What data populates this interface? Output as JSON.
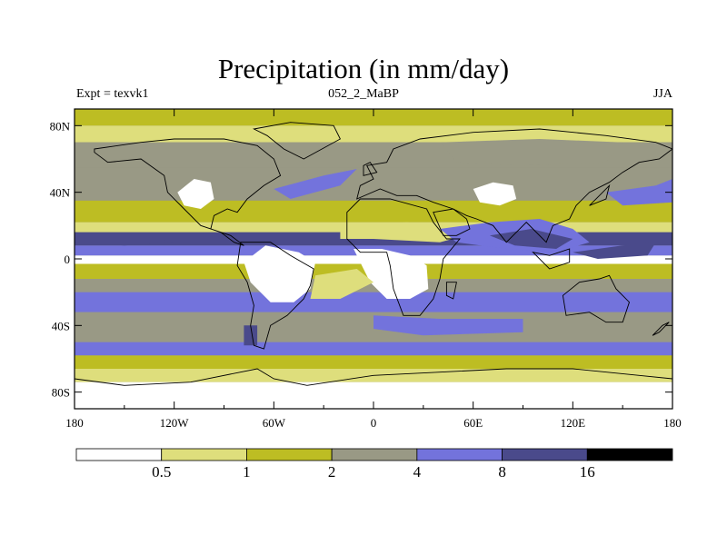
{
  "title": "Precipitation (in mm/day)",
  "subtitle": {
    "left": "Expt = texvk1",
    "center": "052_2_MaBP",
    "right": "JJA"
  },
  "chart_data": {
    "type": "heatmap",
    "subtype": "filled-contour world map",
    "variable": "Precipitation",
    "units": "mm/day",
    "season": "JJA",
    "lon_range": [
      -180,
      180
    ],
    "lat_range": [
      -90,
      90
    ],
    "x_ticks": [
      {
        "value": -180,
        "label": "180"
      },
      {
        "value": -120,
        "label": "120W"
      },
      {
        "value": -60,
        "label": "60W"
      },
      {
        "value": 0,
        "label": "0"
      },
      {
        "value": 60,
        "label": "60E"
      },
      {
        "value": 120,
        "label": "120E"
      },
      {
        "value": 180,
        "label": "180"
      }
    ],
    "y_ticks": [
      {
        "value": 80,
        "label": "80N"
      },
      {
        "value": 40,
        "label": "40N"
      },
      {
        "value": 0,
        "label": "0"
      },
      {
        "value": -40,
        "label": "40S"
      },
      {
        "value": -80,
        "label": "80S"
      }
    ],
    "levels": [
      0.5,
      1,
      2,
      4,
      8,
      16
    ],
    "level_labels": [
      "0.5",
      "1",
      "2",
      "4",
      "8",
      "16"
    ],
    "colors": [
      "#ffffff",
      "#dede7c",
      "#bdbd23",
      "#999985",
      "#7373dc",
      "#4a4a8b",
      "#000000"
    ],
    "zonal_bands": [
      {
        "lat": [
          80,
          90
        ],
        "bin": 2
      },
      {
        "lat": [
          70,
          80
        ],
        "bin": 1
      },
      {
        "lat": [
          55,
          70
        ],
        "bin": 3
      },
      {
        "lat": [
          35,
          55
        ],
        "bin": 3
      },
      {
        "lat": [
          22,
          35
        ],
        "bin": 2
      },
      {
        "lat": [
          16,
          22
        ],
        "bin": 1
      },
      {
        "lat": [
          8,
          16
        ],
        "bin": 5
      },
      {
        "lat": [
          2,
          8
        ],
        "bin": 4
      },
      {
        "lat": [
          -3,
          2
        ],
        "bin": 0
      },
      {
        "lat": [
          -12,
          -3
        ],
        "bin": 2
      },
      {
        "lat": [
          -20,
          -12
        ],
        "bin": 3
      },
      {
        "lat": [
          -32,
          -20
        ],
        "bin": 4
      },
      {
        "lat": [
          -50,
          -32
        ],
        "bin": 3
      },
      {
        "lat": [
          -58,
          -50
        ],
        "bin": 4
      },
      {
        "lat": [
          -66,
          -58
        ],
        "bin": 2
      },
      {
        "lat": [
          -74,
          -66
        ],
        "bin": 1
      },
      {
        "lat": [
          -90,
          -74
        ],
        "bin": 0
      }
    ],
    "regions": [
      {
        "name": "south-america-dry",
        "bin": 0,
        "points": [
          [
            -65,
            8
          ],
          [
            -45,
            4
          ],
          [
            -35,
            -2
          ],
          [
            -38,
            -18
          ],
          [
            -48,
            -26
          ],
          [
            -62,
            -26
          ],
          [
            -74,
            -14
          ],
          [
            -78,
            -2
          ]
        ]
      },
      {
        "name": "africa-dry",
        "bin": 0,
        "points": [
          [
            -12,
            6
          ],
          [
            5,
            6
          ],
          [
            22,
            2
          ],
          [
            32,
            -4
          ],
          [
            33,
            -18
          ],
          [
            22,
            -24
          ],
          [
            8,
            -24
          ],
          [
            -2,
            -14
          ]
        ]
      },
      {
        "name": "north-america-dry",
        "bin": 0,
        "points": [
          [
            -118,
            40
          ],
          [
            -108,
            48
          ],
          [
            -98,
            46
          ],
          [
            -96,
            36
          ],
          [
            -104,
            30
          ],
          [
            -114,
            32
          ]
        ]
      },
      {
        "name": "central-asia-dry",
        "bin": 0,
        "points": [
          [
            60,
            42
          ],
          [
            72,
            46
          ],
          [
            84,
            44
          ],
          [
            86,
            36
          ],
          [
            76,
            32
          ],
          [
            64,
            34
          ]
        ]
      },
      {
        "name": "sahara-band",
        "bin": 1,
        "points": [
          [
            -20,
            20
          ],
          [
            20,
            22
          ],
          [
            45,
            20
          ],
          [
            55,
            14
          ],
          [
            40,
            10
          ],
          [
            0,
            12
          ],
          [
            -20,
            12
          ]
        ]
      },
      {
        "name": "south-atlantic-dry",
        "bin": 1,
        "points": [
          [
            -35,
            -10
          ],
          [
            -10,
            -6
          ],
          [
            0,
            -14
          ],
          [
            -20,
            -24
          ],
          [
            -38,
            -24
          ]
        ]
      },
      {
        "name": "asian-monsoon",
        "bin": 4,
        "points": [
          [
            40,
            18
          ],
          [
            70,
            22
          ],
          [
            100,
            24
          ],
          [
            120,
            18
          ],
          [
            130,
            10
          ],
          [
            110,
            4
          ],
          [
            80,
            6
          ],
          [
            50,
            10
          ]
        ]
      },
      {
        "name": "monsoon-core",
        "bin": 5,
        "points": [
          [
            70,
            14
          ],
          [
            95,
            18
          ],
          [
            120,
            12
          ],
          [
            110,
            6
          ],
          [
            85,
            8
          ]
        ]
      },
      {
        "name": "west-pacific-wet",
        "bin": 5,
        "points": [
          [
            120,
            4
          ],
          [
            150,
            8
          ],
          [
            170,
            10
          ],
          [
            165,
            2
          ],
          [
            135,
            0
          ]
        ]
      },
      {
        "name": "pacific-itcz",
        "bin": 5,
        "points": [
          [
            -180,
            16
          ],
          [
            -140,
            14
          ],
          [
            -120,
            10
          ],
          [
            -150,
            8
          ],
          [
            -180,
            10
          ]
        ]
      },
      {
        "name": "patagonia-wet",
        "bin": 5,
        "points": [
          [
            -78,
            -40
          ],
          [
            -70,
            -40
          ],
          [
            -70,
            -52
          ],
          [
            -78,
            -52
          ]
        ]
      },
      {
        "name": "siberia-gray",
        "bin": 3,
        "points": [
          [
            40,
            70
          ],
          [
            100,
            72
          ],
          [
            150,
            70
          ],
          [
            140,
            58
          ],
          [
            90,
            56
          ],
          [
            50,
            58
          ]
        ]
      },
      {
        "name": "north-pacific-wet",
        "bin": 4,
        "points": [
          [
            140,
            40
          ],
          [
            170,
            44
          ],
          [
            180,
            48
          ],
          [
            180,
            34
          ],
          [
            150,
            32
          ]
        ]
      },
      {
        "name": "north-atlantic-wet",
        "bin": 4,
        "points": [
          [
            -60,
            42
          ],
          [
            -30,
            50
          ],
          [
            -10,
            54
          ],
          [
            -20,
            44
          ],
          [
            -50,
            36
          ]
        ]
      },
      {
        "name": "southern-ocean-wet",
        "bin": 4,
        "points": [
          [
            0,
            -34
          ],
          [
            40,
            -36
          ],
          [
            90,
            -36
          ],
          [
            90,
            -44
          ],
          [
            30,
            -46
          ],
          [
            0,
            -42
          ]
        ]
      }
    ],
    "land_outlines": [
      {
        "name": "north-america",
        "points": [
          [
            -168,
            66
          ],
          [
            -140,
            70
          ],
          [
            -120,
            72
          ],
          [
            -90,
            72
          ],
          [
            -70,
            68
          ],
          [
            -60,
            60
          ],
          [
            -56,
            50
          ],
          [
            -66,
            44
          ],
          [
            -76,
            36
          ],
          [
            -82,
            28
          ],
          [
            -88,
            30
          ],
          [
            -96,
            26
          ],
          [
            -98,
            18
          ],
          [
            -92,
            16
          ],
          [
            -84,
            10
          ],
          [
            -78,
            8
          ],
          [
            -86,
            14
          ],
          [
            -104,
            20
          ],
          [
            -114,
            30
          ],
          [
            -124,
            40
          ],
          [
            -126,
            50
          ],
          [
            -140,
            60
          ],
          [
            -160,
            58
          ],
          [
            -168,
            64
          ]
        ]
      },
      {
        "name": "south-america",
        "points": [
          [
            -80,
            10
          ],
          [
            -62,
            10
          ],
          [
            -50,
            2
          ],
          [
            -36,
            -6
          ],
          [
            -38,
            -16
          ],
          [
            -42,
            -24
          ],
          [
            -52,
            -34
          ],
          [
            -62,
            -40
          ],
          [
            -66,
            -54
          ],
          [
            -72,
            -52
          ],
          [
            -74,
            -40
          ],
          [
            -72,
            -28
          ],
          [
            -76,
            -14
          ],
          [
            -82,
            -4
          ]
        ]
      },
      {
        "name": "greenland",
        "points": [
          [
            -72,
            78
          ],
          [
            -50,
            82
          ],
          [
            -24,
            80
          ],
          [
            -20,
            72
          ],
          [
            -42,
            60
          ],
          [
            -54,
            66
          ],
          [
            -64,
            74
          ]
        ]
      },
      {
        "name": "eurasia",
        "points": [
          [
            -10,
            36
          ],
          [
            -8,
            44
          ],
          [
            0,
            48
          ],
          [
            -4,
            56
          ],
          [
            8,
            58
          ],
          [
            12,
            66
          ],
          [
            28,
            72
          ],
          [
            60,
            76
          ],
          [
            100,
            78
          ],
          [
            140,
            74
          ],
          [
            170,
            70
          ],
          [
            180,
            66
          ],
          [
            172,
            60
          ],
          [
            160,
            58
          ],
          [
            150,
            52
          ],
          [
            142,
            46
          ],
          [
            130,
            40
          ],
          [
            122,
            32
          ],
          [
            118,
            24
          ],
          [
            108,
            20
          ],
          [
            104,
            10
          ],
          [
            98,
            16
          ],
          [
            92,
            22
          ],
          [
            80,
            10
          ],
          [
            72,
            20
          ],
          [
            62,
            24
          ],
          [
            56,
            26
          ],
          [
            48,
            30
          ],
          [
            36,
            34
          ],
          [
            26,
            38
          ],
          [
            14,
            38
          ],
          [
            4,
            42
          ]
        ]
      },
      {
        "name": "africa",
        "points": [
          [
            -16,
            28
          ],
          [
            -8,
            36
          ],
          [
            10,
            36
          ],
          [
            32,
            30
          ],
          [
            36,
            22
          ],
          [
            44,
            12
          ],
          [
            52,
            12
          ],
          [
            42,
            0
          ],
          [
            40,
            -12
          ],
          [
            36,
            -24
          ],
          [
            28,
            -34
          ],
          [
            18,
            -34
          ],
          [
            12,
            -18
          ],
          [
            10,
            -4
          ],
          [
            8,
            4
          ],
          [
            -8,
            4
          ],
          [
            -16,
            12
          ]
        ]
      },
      {
        "name": "australia",
        "points": [
          [
            114,
            -22
          ],
          [
            124,
            -14
          ],
          [
            136,
            -12
          ],
          [
            142,
            -10
          ],
          [
            146,
            -18
          ],
          [
            154,
            -26
          ],
          [
            150,
            -38
          ],
          [
            140,
            -38
          ],
          [
            130,
            -32
          ],
          [
            116,
            -34
          ]
        ]
      },
      {
        "name": "antarctica",
        "points": [
          [
            -180,
            -72
          ],
          [
            -150,
            -76
          ],
          [
            -110,
            -74
          ],
          [
            -70,
            -66
          ],
          [
            -60,
            -72
          ],
          [
            -40,
            -76
          ],
          [
            0,
            -70
          ],
          [
            40,
            -68
          ],
          [
            80,
            -66
          ],
          [
            120,
            -66
          ],
          [
            160,
            -70
          ],
          [
            180,
            -72
          ],
          [
            180,
            -90
          ],
          [
            -180,
            -90
          ]
        ]
      },
      {
        "name": "arabia",
        "points": [
          [
            36,
            28
          ],
          [
            48,
            30
          ],
          [
            56,
            24
          ],
          [
            58,
            18
          ],
          [
            50,
            14
          ],
          [
            42,
            14
          ]
        ]
      },
      {
        "name": "madagascar",
        "points": [
          [
            44,
            -14
          ],
          [
            50,
            -14
          ],
          [
            48,
            -24
          ],
          [
            44,
            -22
          ]
        ]
      },
      {
        "name": "borneo-sumatra",
        "points": [
          [
            96,
            4
          ],
          [
            106,
            2
          ],
          [
            118,
            6
          ],
          [
            118,
            -2
          ],
          [
            106,
            -6
          ]
        ]
      },
      {
        "name": "japan",
        "points": [
          [
            130,
            32
          ],
          [
            140,
            36
          ],
          [
            142,
            44
          ],
          [
            138,
            40
          ]
        ]
      },
      {
        "name": "uk",
        "points": [
          [
            -6,
            50
          ],
          [
            2,
            52
          ],
          [
            -2,
            58
          ],
          [
            -6,
            56
          ]
        ]
      },
      {
        "name": "new-zealand",
        "points": [
          [
            168,
            -46
          ],
          [
            174,
            -40
          ],
          [
            178,
            -38
          ],
          [
            172,
            -44
          ]
        ]
      }
    ]
  }
}
